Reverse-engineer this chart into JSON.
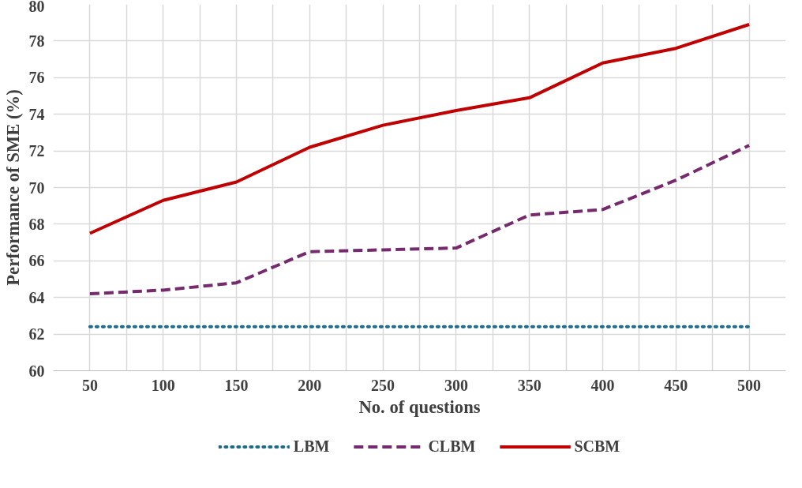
{
  "chart_data": {
    "type": "line",
    "xlabel": "No. of questions",
    "ylabel": "Performance of SME (%)",
    "categories": [
      "50",
      "100",
      "150",
      "200",
      "250",
      "300",
      "350",
      "400",
      "450",
      "500"
    ],
    "ylim": [
      60,
      80
    ],
    "yticks": [
      60,
      62,
      64,
      66,
      68,
      70,
      72,
      74,
      76,
      78,
      80
    ],
    "grid": true,
    "legend": "bottom",
    "marker": "none",
    "series": [
      {
        "name": "LBM",
        "color": "#1f6a8a",
        "line_style": "dotted",
        "values": [
          62.4,
          62.4,
          62.4,
          62.4,
          62.4,
          62.4,
          62.4,
          62.4,
          62.4,
          62.4
        ]
      },
      {
        "name": "CLBM",
        "color": "#762a6e",
        "line_style": "dashed",
        "values": [
          64.2,
          64.4,
          64.8,
          66.5,
          66.6,
          66.7,
          68.5,
          68.8,
          70.4,
          72.3
        ]
      },
      {
        "name": "SCBM",
        "color": "#c00000",
        "line_style": "solid",
        "values": [
          67.5,
          69.3,
          70.3,
          72.2,
          73.4,
          74.2,
          74.9,
          76.8,
          77.6,
          78.9
        ]
      }
    ]
  }
}
